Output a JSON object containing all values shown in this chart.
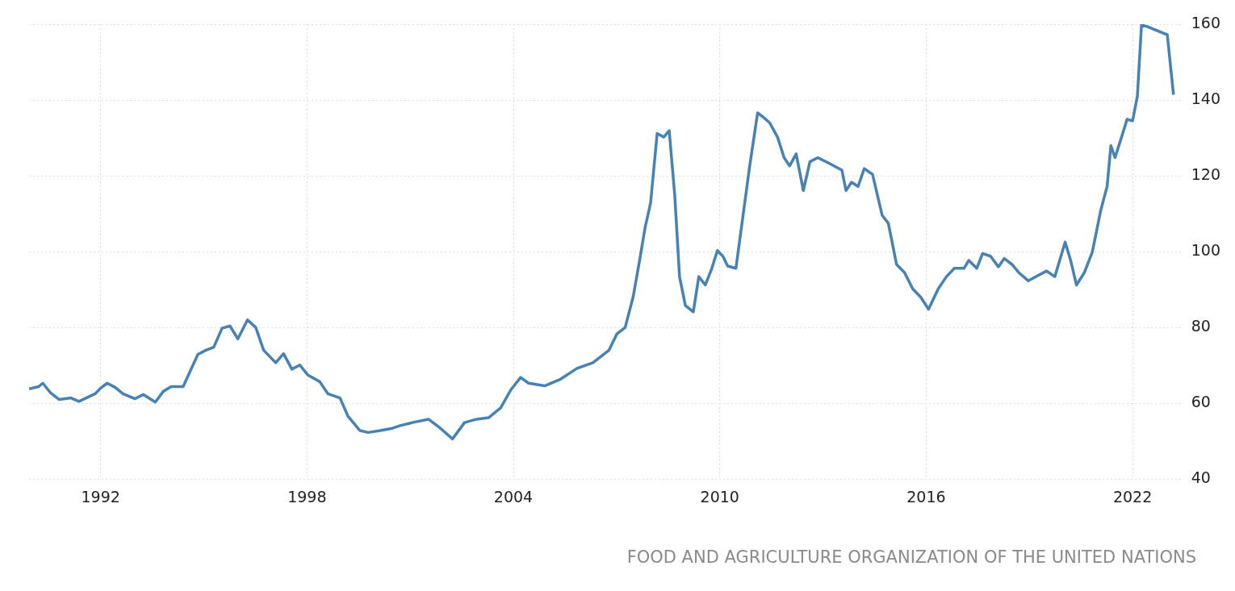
{
  "chart_data": {
    "type": "line",
    "color": "#4682b4",
    "marker": "none",
    "grid": true,
    "x": [
      1989.92,
      1990.2,
      1990.32,
      1990.55,
      1990.79,
      1991.14,
      1991.37,
      1991.84,
      1992.0,
      1992.19,
      1992.42,
      1992.65,
      1993.0,
      1993.24,
      1993.59,
      1993.82,
      1994.05,
      1994.4,
      1994.64,
      1994.83,
      1995.06,
      1995.29,
      1995.53,
      1995.76,
      1995.99,
      1996.27,
      1996.51,
      1996.74,
      1997.09,
      1997.32,
      1997.56,
      1997.79,
      1998.02,
      1998.37,
      1998.61,
      1998.96,
      1999.19,
      1999.54,
      1999.78,
      2000.13,
      2000.48,
      2000.71,
      2001.06,
      2001.53,
      2001.88,
      2002.23,
      2002.58,
      2002.93,
      2003.28,
      2003.63,
      2003.93,
      2004.21,
      2004.44,
      2004.91,
      2005.38,
      2005.85,
      2006.31,
      2006.78,
      2007.01,
      2007.25,
      2007.48,
      2007.67,
      2007.83,
      2007.99,
      2008.18,
      2008.37,
      2008.53,
      2008.69,
      2008.83,
      2009.0,
      2009.23,
      2009.39,
      2009.58,
      2009.77,
      2009.93,
      2010.09,
      2010.23,
      2010.47,
      2010.63,
      2010.87,
      2011.1,
      2011.26,
      2011.45,
      2011.68,
      2011.87,
      2012.03,
      2012.22,
      2012.43,
      2012.62,
      2012.85,
      2013.2,
      2013.55,
      2013.67,
      2013.83,
      2014.02,
      2014.2,
      2014.44,
      2014.72,
      2014.9,
      2015.14,
      2015.37,
      2015.61,
      2015.84,
      2016.07,
      2016.35,
      2016.59,
      2016.82,
      2017.1,
      2017.24,
      2017.47,
      2017.64,
      2017.87,
      2018.1,
      2018.27,
      2018.5,
      2018.69,
      2018.97,
      2019.27,
      2019.5,
      2019.74,
      2020.04,
      2020.2,
      2020.37,
      2020.6,
      2020.83,
      2021.07,
      2021.26,
      2021.37,
      2021.49,
      2021.68,
      2021.84,
      2022.0,
      2022.14,
      2022.26,
      2022.42,
      2023.01,
      2023.19
    ],
    "values": [
      63.8,
      64.4,
      65.3,
      62.7,
      61.0,
      61.4,
      60.5,
      62.5,
      64.0,
      65.3,
      64.2,
      62.5,
      61.2,
      62.3,
      60.3,
      63.1,
      64.4,
      64.4,
      69.2,
      72.9,
      74.0,
      74.8,
      79.8,
      80.4,
      77.0,
      82.0,
      80.0,
      74.0,
      70.7,
      73.1,
      69.0,
      70.1,
      67.5,
      65.7,
      62.5,
      61.4,
      56.6,
      52.8,
      52.3,
      52.8,
      53.4,
      54.1,
      54.9,
      55.8,
      53.4,
      50.6,
      54.9,
      55.8,
      56.2,
      58.8,
      63.6,
      66.8,
      65.3,
      64.6,
      66.4,
      69.2,
      70.7,
      74.0,
      78.3,
      80.0,
      88.0,
      97.7,
      106.4,
      112.9,
      131.2,
      130.2,
      131.9,
      115.0,
      93.4,
      85.8,
      84.1,
      93.4,
      91.2,
      95.6,
      100.3,
      98.8,
      96.2,
      95.6,
      106.4,
      122.6,
      136.6,
      135.5,
      134.0,
      130.2,
      124.8,
      122.6,
      125.8,
      116.1,
      123.7,
      124.8,
      123.2,
      121.5,
      116.1,
      118.3,
      117.2,
      121.9,
      120.4,
      109.6,
      107.5,
      96.6,
      94.5,
      90.2,
      88.0,
      84.8,
      90.2,
      93.4,
      95.6,
      95.6,
      97.7,
      95.6,
      99.5,
      98.8,
      96.0,
      98.2,
      96.6,
      94.5,
      92.3,
      93.8,
      94.9,
      93.4,
      102.5,
      97.7,
      91.2,
      94.5,
      99.9,
      110.7,
      117.2,
      128.0,
      124.8,
      130.2,
      134.9,
      134.5,
      141.0,
      159.8,
      159.4,
      157.2,
      141.4
    ],
    "xlim": [
      1989.92,
      2023.47
    ],
    "xticks": [
      1992,
      1998,
      2004,
      2010,
      2016,
      2022
    ],
    "ylim": [
      40,
      160
    ],
    "yticks": [
      40,
      60,
      80,
      100,
      120,
      140,
      160
    ],
    "annotations": [
      "FOOD AND AGRICULTURE ORGANIZATION OF THE UNITED NATIONS"
    ]
  }
}
